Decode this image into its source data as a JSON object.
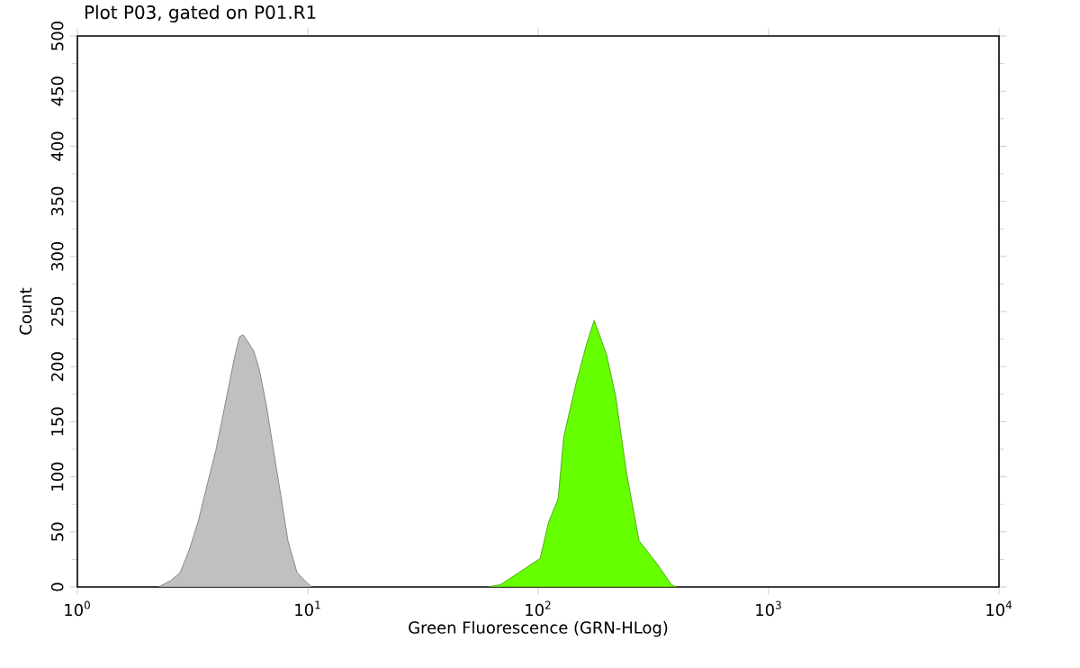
{
  "chart_data": {
    "type": "area",
    "title": "Plot P03, gated on P01.R1",
    "xlabel": "Green Fluorescence (GRN-HLog)",
    "ylabel": "Count",
    "log": "x",
    "grid": false,
    "xlim": [
      1,
      10000
    ],
    "ylim": [
      0,
      500
    ],
    "xticks": [
      {
        "value": 1,
        "label": "10$^{0}$"
      },
      {
        "value": 10,
        "label": "10$^{1}$"
      },
      {
        "value": 100,
        "label": "10$^{2}$"
      },
      {
        "value": 1000,
        "label": "10$^{3}$"
      },
      {
        "value": 10000,
        "label": "10$^{4}$"
      }
    ],
    "yticks": [
      0,
      50,
      100,
      150,
      200,
      250,
      300,
      350,
      400,
      450,
      500
    ],
    "series": [
      {
        "color": "#c0c0c0",
        "x": [
          2.25,
          2.55,
          2.79,
          3.05,
          3.34,
          3.65,
          3.99,
          4.37,
          4.78,
          5.05,
          5.23,
          5.52,
          5.83,
          6.15,
          6.61,
          7.1,
          7.64,
          8.2,
          8.98,
          9.79,
          10.4
        ],
        "values": [
          0,
          6,
          13,
          33,
          59,
          92,
          124,
          165,
          206,
          227,
          229,
          222,
          214,
          198,
          165,
          124,
          83,
          42,
          13,
          5,
          0
        ]
      },
      {
        "color": "#66ff00",
        "x": [
          60,
          68.5,
          85,
          102,
          111,
          122,
          129,
          146,
          163,
          175,
          198,
          217,
          242,
          274,
          328,
          379,
          400
        ],
        "values": [
          0,
          2,
          15,
          26,
          59,
          80,
          136,
          185,
          222,
          242,
          211,
          173,
          103,
          42,
          21,
          2,
          0
        ]
      }
    ]
  }
}
